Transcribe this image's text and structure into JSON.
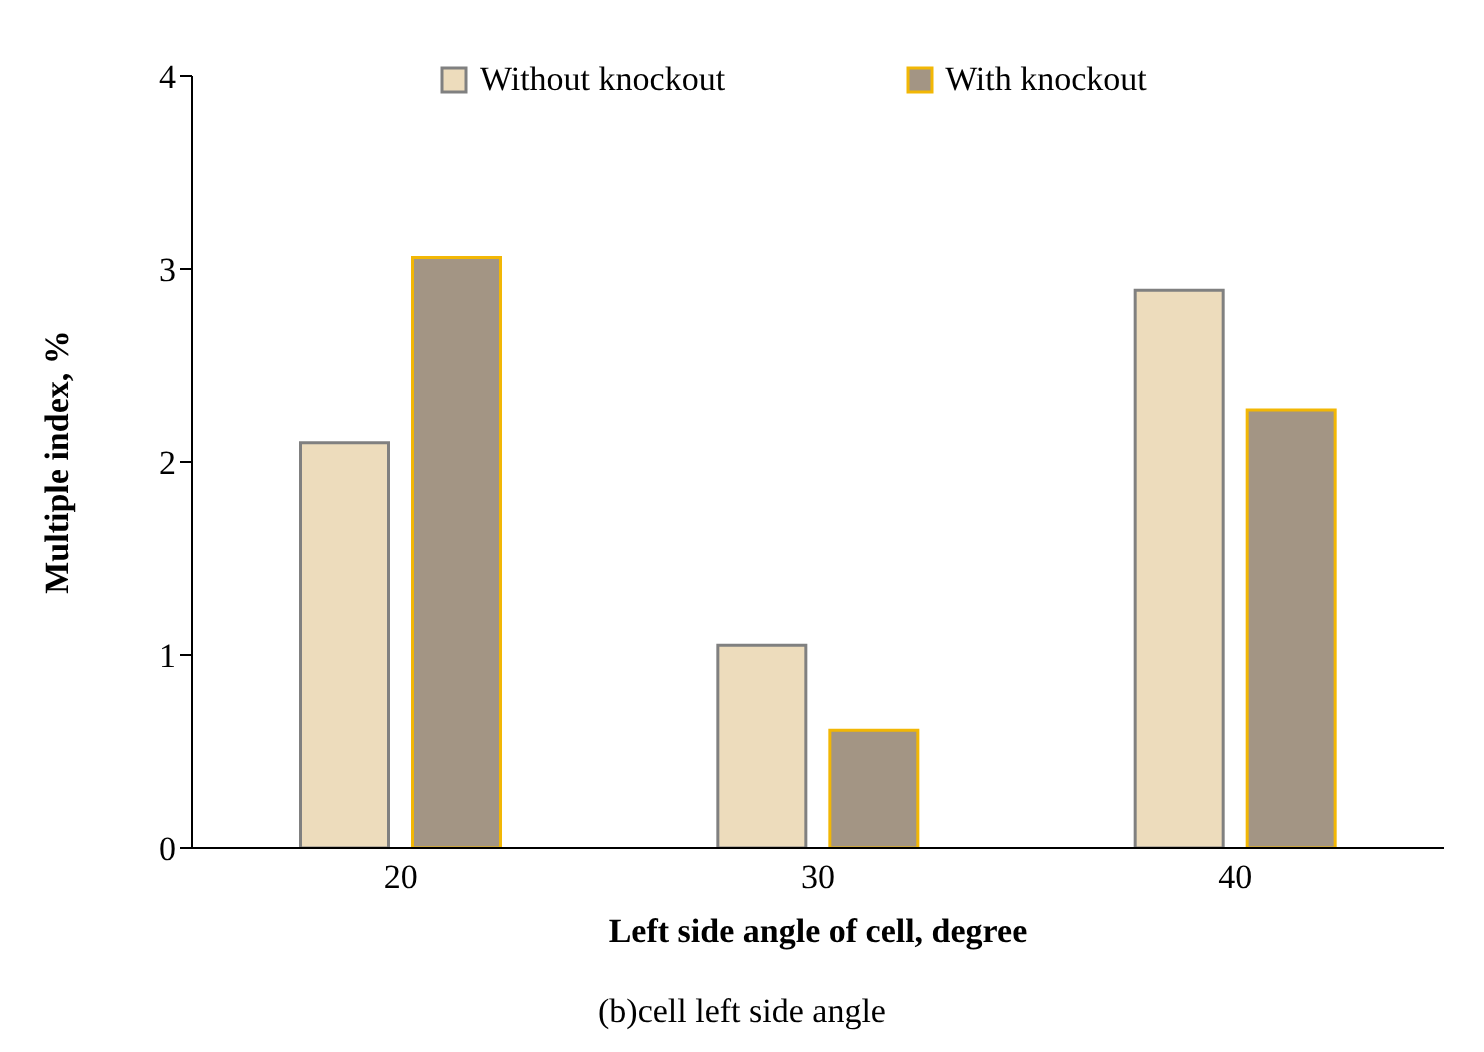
{
  "chart_data": {
    "type": "bar",
    "xlabel": "Left side angle of cell, degree",
    "ylabel": "Multiple index, %",
    "categories": [
      "20",
      "30",
      "40"
    ],
    "series": [
      {
        "name": "Without knockout",
        "color": "#eddcbc",
        "values": [
          2.1,
          1.05,
          2.89
        ]
      },
      {
        "name": "With knockout",
        "color": "#a39584",
        "values": [
          3.06,
          0.61,
          2.27
        ]
      }
    ],
    "ylim": [
      0,
      4
    ],
    "yticks": [
      0,
      1,
      2,
      3,
      4
    ],
    "grid": false,
    "legend": "top",
    "annotations": [
      "(b)cell left side angle"
    ]
  }
}
